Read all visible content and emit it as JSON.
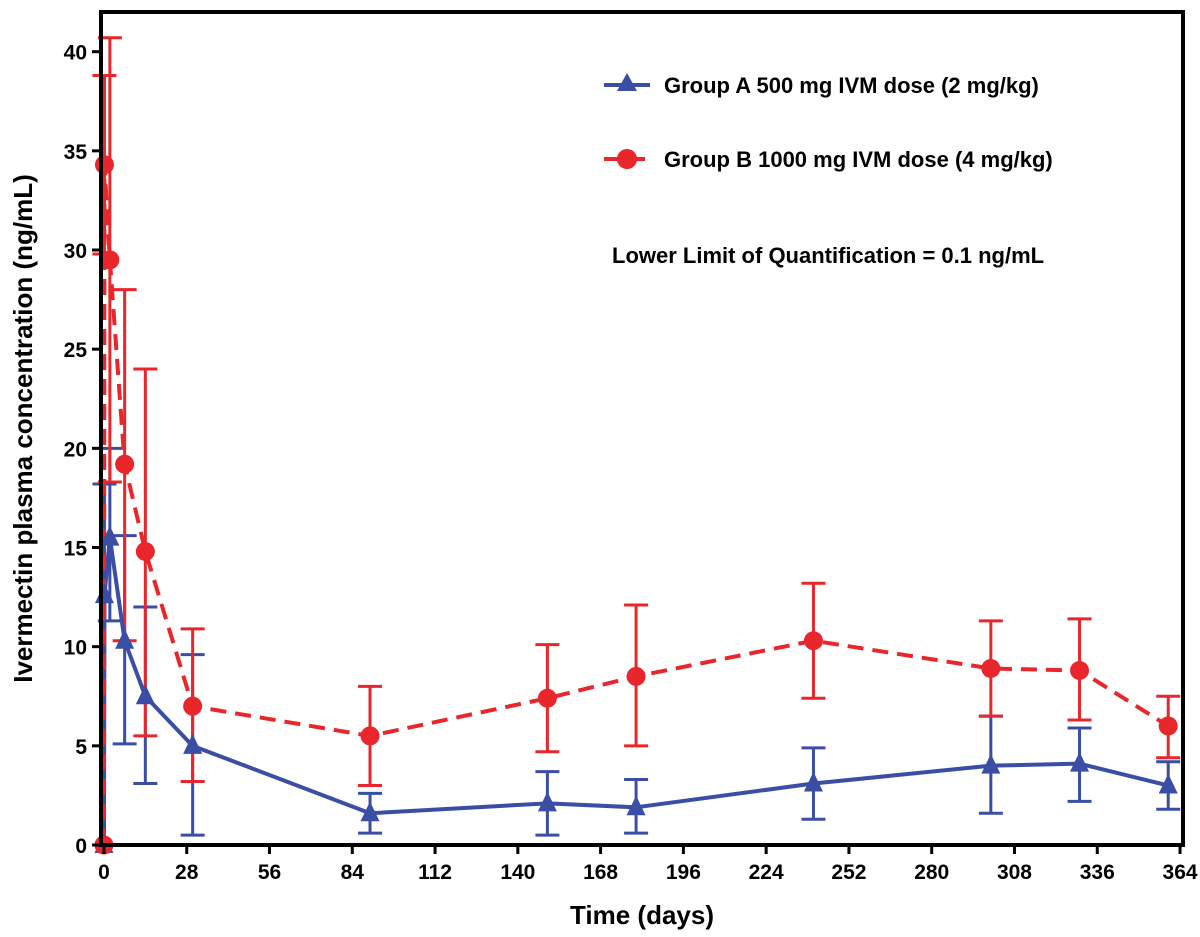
{
  "chart_data": {
    "type": "line",
    "xlabel": "Time (days)",
    "ylabel": "Ivermectin  plasma concentration (ng/mL)",
    "xlim": [
      -1,
      365
    ],
    "ylim": [
      0,
      42
    ],
    "xticks": [
      0,
      28,
      56,
      84,
      112,
      140,
      168,
      196,
      224,
      252,
      280,
      308,
      336,
      364
    ],
    "yticks": [
      0,
      5,
      10,
      15,
      20,
      25,
      30,
      35,
      40
    ],
    "annotation": "Lower Limit of Quantification = 0.1 ng/mL",
    "legend_position": "top-right",
    "series": [
      {
        "name": "Group A 500 mg IVM dose (2 mg/kg)",
        "color": "#3a4ea6",
        "marker": "triangle",
        "line": "solid",
        "x": [
          0,
          0.17,
          2,
          7,
          14,
          30,
          90,
          150,
          180,
          240,
          300,
          330,
          360
        ],
        "y": [
          0,
          12.6,
          15.5,
          10.3,
          7.5,
          5.0,
          1.6,
          2.1,
          1.9,
          3.1,
          4.0,
          4.1,
          3.0
        ],
        "err_upper": [
          0,
          18.2,
          20.0,
          15.6,
          12.0,
          9.6,
          2.6,
          3.7,
          3.3,
          4.9,
          6.5,
          5.9,
          4.2
        ],
        "err_lower": [
          0,
          0,
          11.3,
          5.1,
          3.1,
          0.5,
          0.6,
          0.5,
          0.6,
          1.3,
          1.6,
          2.2,
          1.8
        ]
      },
      {
        "name": "Group B 1000 mg IVM dose (4 mg/kg)",
        "color": "#e8262b",
        "marker": "circle",
        "line": "dashed",
        "x": [
          0,
          0.17,
          2,
          7,
          14,
          30,
          90,
          150,
          180,
          240,
          300,
          330,
          360
        ],
        "y": [
          0,
          34.3,
          29.5,
          19.2,
          14.8,
          7.0,
          5.5,
          7.4,
          8.5,
          10.3,
          8.9,
          8.8,
          6.0
        ],
        "err_upper": [
          0,
          38.8,
          40.7,
          28.0,
          24.0,
          10.9,
          8.0,
          10.1,
          12.1,
          13.2,
          11.3,
          11.4,
          7.5
        ],
        "err_lower": [
          0,
          29.8,
          18.3,
          10.3,
          5.5,
          3.2,
          3.0,
          4.7,
          5.0,
          7.4,
          6.5,
          6.3,
          4.4
        ]
      }
    ]
  }
}
